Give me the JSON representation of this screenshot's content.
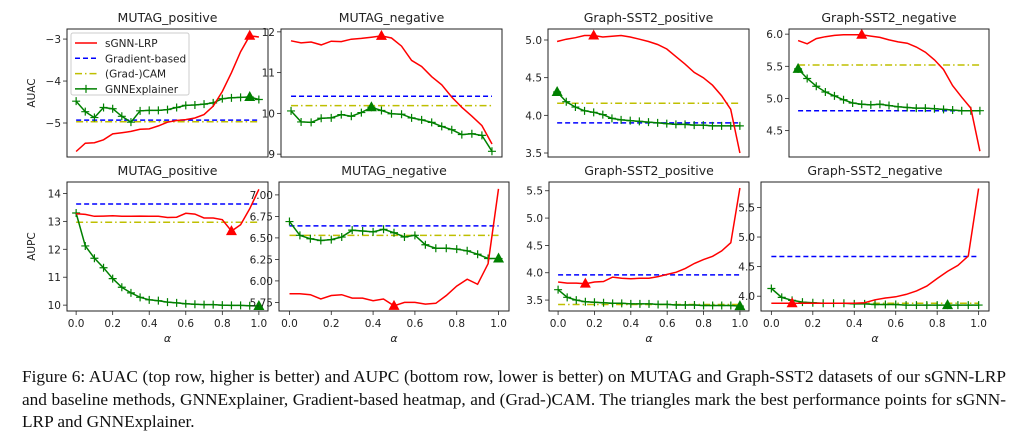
{
  "figure": {
    "caption": "Figure 6: AUAC (top row, higher is better) and AUPC (bottom row, lower is better) on MUTAG and Graph-SST2 datasets of our sGNN-LRP and baseline methods, GNNExplainer, Gradient-based heatmap, and (Grad-)CAM. The triangles mark the best performance points for sGNN-LRP and GNNExplainer."
  },
  "legend": {
    "placement": "upper-left of first panel",
    "entries": [
      "sGNN-LRP",
      "Gradient-based",
      "(Grad-)CAM",
      "GNNExplainer"
    ]
  },
  "colors": {
    "sGNN-LRP": "#ff0000",
    "Gradient-based": "#0000ff",
    "(Grad-)CAM": "#bfbf00",
    "GNNExplainer": "#008000"
  },
  "chart_data": [
    {
      "type": "line",
      "title": "MUTAG_positive",
      "ylabel": "AUAC",
      "xlabel": "",
      "x_ticks": [],
      "ylim": [
        -5.81,
        -2.76
      ],
      "y_ticks": [
        -5,
        -4,
        -3
      ],
      "y_tick_labels": [
        "−5",
        "−4",
        "−3"
      ],
      "sgnn": [
        -5.68,
        -5.48,
        -5.47,
        -5.4,
        -5.26,
        -5.23,
        -5.2,
        -5.15,
        -5.14,
        -5.07,
        -4.98,
        -4.94,
        -4.92,
        -4.88,
        -4.8,
        -4.6,
        -4.25,
        -3.8,
        -3.3,
        -2.92,
        -2.95
      ],
      "sgnn_best": 0.95,
      "gnnexp": [
        -4.48,
        -4.73,
        -4.87,
        -4.63,
        -4.66,
        -4.84,
        -4.98,
        -4.71,
        -4.7,
        -4.7,
        -4.68,
        -4.63,
        -4.58,
        -4.57,
        -4.55,
        -4.52,
        -4.42,
        -4.4,
        -4.39,
        -4.38,
        -4.44
      ],
      "gnnexp_best": 0.95,
      "gradient": -4.93,
      "cam": -4.97
    },
    {
      "type": "line",
      "title": "MUTAG_negative",
      "ylabel": "",
      "xlabel": "",
      "x_ticks": [],
      "ylim": [
        8.93,
        12.07
      ],
      "y_ticks": [
        9,
        10,
        11,
        12
      ],
      "y_tick_labels": [
        "9",
        "10",
        "11",
        "12"
      ],
      "sgnn": [
        11.78,
        11.73,
        11.75,
        11.68,
        11.77,
        11.76,
        11.82,
        11.84,
        11.87,
        11.9,
        11.85,
        11.65,
        11.3,
        11.15,
        10.9,
        10.7,
        10.4,
        10.15,
        9.93,
        9.7,
        9.25
      ],
      "sgnn_best": 0.45,
      "gnnexp": [
        10.06,
        9.79,
        9.78,
        9.88,
        9.89,
        9.97,
        9.93,
        10.02,
        10.15,
        10.07,
        9.99,
        9.98,
        9.89,
        9.84,
        9.78,
        9.68,
        9.6,
        9.48,
        9.5,
        9.46,
        9.07
      ],
      "gnnexp_best": 0.4,
      "gradient": 10.42,
      "cam": 10.19
    },
    {
      "type": "line",
      "title": "Graph-SST2_positive",
      "ylabel": "",
      "xlabel": "",
      "x_ticks": [],
      "ylim": [
        3.447,
        5.146
      ],
      "y_ticks": [
        3.5,
        4.0,
        4.5,
        5.0
      ],
      "y_tick_labels": [
        "3.5",
        "4.0",
        "4.5",
        "5.0"
      ],
      "sgnn": [
        4.98,
        5.01,
        5.03,
        5.06,
        5.06,
        5.04,
        5.05,
        5.06,
        5.04,
        5.01,
        4.98,
        4.94,
        4.88,
        4.78,
        4.68,
        4.57,
        4.5,
        4.4,
        4.26,
        4.08,
        3.5
      ],
      "sgnn_best": 0.2,
      "gnnexp": [
        4.31,
        4.18,
        4.11,
        4.06,
        4.04,
        4.01,
        3.96,
        3.94,
        3.93,
        3.92,
        3.91,
        3.9,
        3.89,
        3.88,
        3.88,
        3.87,
        3.87,
        3.86,
        3.86,
        3.86,
        3.86
      ],
      "gnnexp_best": 0.0,
      "gradient": 3.9,
      "cam": 4.16
    },
    {
      "type": "line",
      "title": "Graph-SST2_negative",
      "ylabel": "",
      "xlabel": "",
      "x_ticks": [],
      "ylim": [
        4.09,
        6.08
      ],
      "y_ticks": [
        4.5,
        5.0,
        5.5,
        6.0
      ],
      "y_tick_labels": [
        "4.5",
        "5.0",
        "5.5",
        "6.0"
      ],
      "sgnn": [
        5.9,
        5.85,
        5.93,
        5.96,
        5.98,
        5.99,
        5.99,
        5.99,
        5.97,
        5.95,
        5.91,
        5.88,
        5.86,
        5.8,
        5.72,
        5.6,
        5.45,
        5.2,
        5.02,
        4.85,
        4.18
      ],
      "sgnn_best": 0.35,
      "gnnexp": [
        5.46,
        5.31,
        5.19,
        5.1,
        5.04,
        4.98,
        4.93,
        4.91,
        4.9,
        4.91,
        4.89,
        4.87,
        4.86,
        4.85,
        4.85,
        4.84,
        4.83,
        4.82,
        4.81,
        4.81,
        4.81
      ],
      "gnnexp_best": 0.0,
      "gradient": 4.81,
      "cam": 5.52
    },
    {
      "type": "line",
      "title": "MUTAG_positive",
      "ylabel": "AUPC",
      "xlabel": "α",
      "x_ticks": [
        "0.0",
        "0.2",
        "0.4",
        "0.6",
        "0.8",
        "1.0"
      ],
      "ylim": [
        9.79,
        14.41
      ],
      "y_ticks": [
        10,
        11,
        12,
        13,
        14
      ],
      "y_tick_labels": [
        "10",
        "11",
        "12",
        "13",
        "14"
      ],
      "sgnn": [
        13.27,
        13.25,
        13.18,
        13.19,
        13.2,
        13.18,
        13.18,
        13.19,
        13.18,
        13.18,
        13.14,
        13.15,
        13.29,
        13.26,
        13.12,
        13.12,
        13.06,
        12.65,
        12.88,
        13.45,
        14.15
      ],
      "sgnn_best": 0.85,
      "gnnexp": [
        13.3,
        12.12,
        11.68,
        11.34,
        10.95,
        10.64,
        10.44,
        10.28,
        10.19,
        10.16,
        10.11,
        10.08,
        10.05,
        10.03,
        10.02,
        10.02,
        10.0,
        9.99,
        9.99,
        9.98,
        9.97
      ],
      "gnnexp_best": 1.0,
      "gradient": 13.62,
      "cam": 12.97
    },
    {
      "type": "line",
      "title": "MUTAG_negative",
      "ylabel": "",
      "xlabel": "α",
      "x_ticks": [
        "0.0",
        "0.2",
        "0.4",
        "0.6",
        "0.8",
        "1.0"
      ],
      "ylim": [
        5.65,
        7.15
      ],
      "y_ticks": [
        5.75,
        6.0,
        6.25,
        6.5,
        6.75,
        7.0
      ],
      "y_tick_labels": [
        "5.75",
        "6.00",
        "6.25",
        "6.50",
        "6.75",
        "7.00"
      ],
      "sgnn": [
        5.85,
        5.85,
        5.84,
        5.79,
        5.83,
        5.84,
        5.8,
        5.8,
        5.77,
        5.79,
        5.71,
        5.75,
        5.75,
        5.73,
        5.74,
        5.83,
        5.94,
        6.02,
        5.96,
        6.2,
        7.07
      ],
      "sgnn_best": 0.5,
      "gnnexp": [
        6.69,
        6.53,
        6.49,
        6.47,
        6.48,
        6.51,
        6.59,
        6.58,
        6.57,
        6.6,
        6.56,
        6.51,
        6.53,
        6.42,
        6.38,
        6.38,
        6.37,
        6.35,
        6.31,
        6.26,
        6.26
      ],
      "gnnexp_best": 1.0,
      "gradient": 6.64,
      "cam": 6.53
    },
    {
      "type": "line",
      "title": "Graph-SST2_positive",
      "ylabel": "",
      "xlabel": "α",
      "x_ticks": [
        "0.0",
        "0.2",
        "0.4",
        "0.6",
        "0.8",
        "1.0"
      ],
      "ylim": [
        3.3,
        5.66
      ],
      "y_ticks": [
        3.5,
        4.0,
        4.5,
        5.0,
        5.5
      ],
      "y_tick_labels": [
        "3.5",
        "4.0",
        "4.5",
        "5.0",
        "5.5"
      ],
      "sgnn": [
        3.83,
        3.81,
        3.81,
        3.8,
        3.83,
        3.84,
        3.92,
        3.9,
        3.89,
        3.9,
        3.9,
        3.93,
        3.97,
        4.01,
        4.08,
        4.17,
        4.24,
        4.3,
        4.4,
        4.55,
        5.55
      ],
      "sgnn_best": 0.15,
      "gnnexp": [
        3.69,
        3.55,
        3.5,
        3.47,
        3.46,
        3.45,
        3.44,
        3.44,
        3.43,
        3.43,
        3.43,
        3.42,
        3.42,
        3.41,
        3.41,
        3.41,
        3.4,
        3.4,
        3.4,
        3.4,
        3.39
      ],
      "gnnexp_best": 1.0,
      "gradient": 3.96,
      "cam": 3.42
    },
    {
      "type": "line",
      "title": "Graph-SST2_negative",
      "ylabel": "",
      "xlabel": "α",
      "x_ticks": [
        "0.0",
        "0.2",
        "0.4",
        "0.6",
        "0.8",
        "1.0"
      ],
      "ylim": [
        3.75,
        5.93
      ],
      "y_ticks": [
        4.0,
        4.5,
        5.0,
        5.5
      ],
      "y_tick_labels": [
        "4.0",
        "4.5",
        "5.0",
        "5.5"
      ],
      "sgnn": [
        3.88,
        3.88,
        3.88,
        3.88,
        3.88,
        3.88,
        3.88,
        3.88,
        3.88,
        3.89,
        3.94,
        3.97,
        3.99,
        4.03,
        4.09,
        4.17,
        4.3,
        4.42,
        4.52,
        4.68,
        5.82
      ],
      "sgnn_best": 0.1,
      "gnnexp": [
        4.13,
        3.98,
        3.93,
        3.9,
        3.89,
        3.88,
        3.88,
        3.88,
        3.87,
        3.87,
        3.86,
        3.86,
        3.86,
        3.85,
        3.85,
        3.85,
        3.85,
        3.85,
        3.85,
        3.85,
        3.85
      ],
      "gnnexp_best": 0.85,
      "gradient": 4.67,
      "cam": 3.88
    }
  ]
}
